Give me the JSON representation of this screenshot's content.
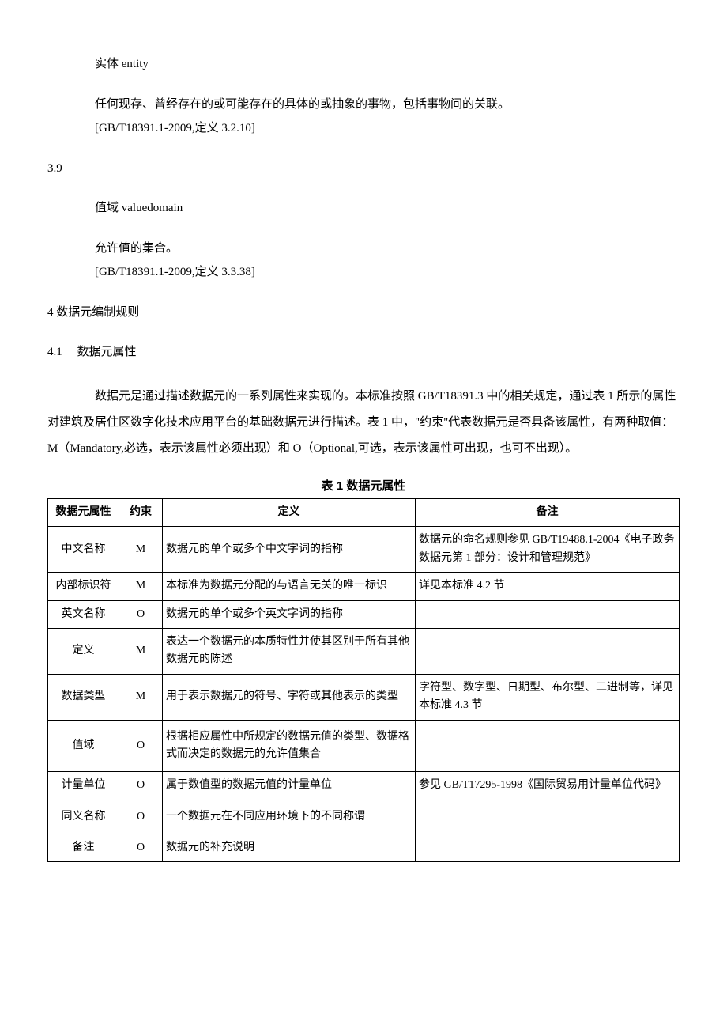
{
  "s38": {
    "term": "实体 entity",
    "def": "任何现存、曾经存在的或可能存在的具体的或抽象的事物，包括事物间的关联。",
    "ref": "[GB/T18391.1-2009,定义 3.2.10]"
  },
  "s39": {
    "num": "3.9",
    "term": "值域 valuedomain",
    "def": "允许值的集合。",
    "ref": "[GB/T18391.1-2009,定义 3.3.38]"
  },
  "s4": {
    "num": "4 数据元编制规则"
  },
  "s41": {
    "num": "4.1",
    "title": "数据元属性",
    "body": "数据元是通过描述数据元的一系列属性来实现的。本标准按照 GB/T18391.3 中的相关规定，通过表 1 所示的属性对建筑及居住区数字化技术应用平台的基础数据元进行描述。表 1 中，\"约束\"代表数据元是否具备该属性，有两种取值：M（Mandatory,必选，表示该属性必须出现）和 O（Optional,可选，表示该属性可出现，也可不出现）。"
  },
  "table": {
    "title": "表 1 数据元属性",
    "headers": [
      "数据元属性",
      "约束",
      "定义",
      "备注"
    ],
    "rows": [
      [
        "中文名称",
        "M",
        "数据元的单个或多个中文字词的指称",
        "数据元的命名规则参见 GB/T19488.1-2004《电子政务数据元第 1 部分：设计和管理规范》"
      ],
      [
        "内部标识符",
        "M",
        "本标准为数据元分配的与语言无关的唯一标识",
        "详见本标准 4.2 节"
      ],
      [
        "英文名称",
        "O",
        "数据元的单个或多个英文字词的指称",
        ""
      ],
      [
        "定义",
        "M",
        "表达一个数据元的本质特性并使其区别于所有其他数据元的陈述",
        ""
      ],
      [
        "数据类型",
        "M",
        "用于表示数据元的符号、字符或其他表示的类型",
        "字符型、数字型、日期型、布尔型、二进制等，详见本标准 4.3 节"
      ],
      [
        "值域",
        "O",
        "根据相应属性中所规定的数据元值的类型、数据格式而决定的数据元的允许值集合",
        ""
      ],
      [
        "计量单位",
        "O",
        "属于数值型的数据元值的计量单位",
        "参见 GB/T17295-1998《国际贸易用计量单位代码》"
      ],
      [
        "同义名称",
        "O",
        "一个数据元在不同应用环境下的不同称谓",
        ""
      ],
      [
        "备注",
        "O",
        "数据元的补充说明",
        ""
      ]
    ]
  }
}
